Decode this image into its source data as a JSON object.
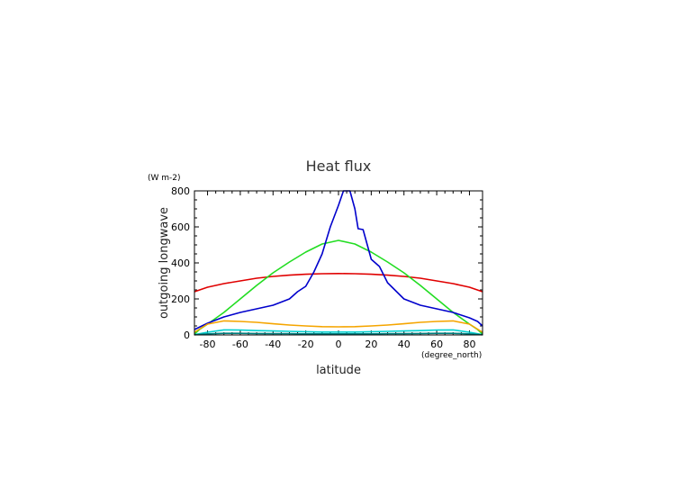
{
  "chart_data": {
    "type": "line",
    "title": "Heat flux",
    "xlabel": "latitude",
    "ylabel": "outgoing longwave",
    "x_units": "(degree_north)",
    "y_units": "(W m-2)",
    "xlim": [
      -88,
      88
    ],
    "ylim": [
      0,
      800
    ],
    "x_ticks": [
      -80,
      -60,
      -40,
      -20,
      0,
      20,
      40,
      60,
      80
    ],
    "y_ticks": [
      0,
      200,
      400,
      600,
      800
    ],
    "legend": "none",
    "series": [
      {
        "color": "#e00000",
        "points": [
          [
            -88,
            240
          ],
          [
            -80,
            265
          ],
          [
            -70,
            285
          ],
          [
            -60,
            300
          ],
          [
            -50,
            315
          ],
          [
            -40,
            325
          ],
          [
            -30,
            332
          ],
          [
            -20,
            337
          ],
          [
            -10,
            340
          ],
          [
            0,
            341
          ],
          [
            10,
            340
          ],
          [
            20,
            337
          ],
          [
            30,
            332
          ],
          [
            40,
            325
          ],
          [
            50,
            315
          ],
          [
            60,
            300
          ],
          [
            70,
            285
          ],
          [
            80,
            265
          ],
          [
            88,
            240
          ]
        ]
      },
      {
        "color": "#22dd22",
        "points": [
          [
            -88,
            5
          ],
          [
            -85,
            30
          ],
          [
            -80,
            60
          ],
          [
            -70,
            125
          ],
          [
            -60,
            200
          ],
          [
            -50,
            275
          ],
          [
            -40,
            345
          ],
          [
            -30,
            405
          ],
          [
            -20,
            460
          ],
          [
            -10,
            505
          ],
          [
            0,
            525
          ],
          [
            10,
            505
          ],
          [
            20,
            460
          ],
          [
            30,
            405
          ],
          [
            40,
            345
          ],
          [
            50,
            275
          ],
          [
            60,
            200
          ],
          [
            70,
            125
          ],
          [
            80,
            60
          ],
          [
            85,
            30
          ],
          [
            88,
            5
          ]
        ]
      },
      {
        "color": "#0000cc",
        "points": [
          [
            -88,
            30
          ],
          [
            -80,
            65
          ],
          [
            -70,
            100
          ],
          [
            -60,
            125
          ],
          [
            -50,
            145
          ],
          [
            -40,
            165
          ],
          [
            -30,
            200
          ],
          [
            -25,
            240
          ],
          [
            -20,
            270
          ],
          [
            -15,
            350
          ],
          [
            -10,
            450
          ],
          [
            -5,
            600
          ],
          [
            0,
            720
          ],
          [
            3,
            800
          ],
          [
            7,
            800
          ],
          [
            10,
            700
          ],
          [
            12,
            590
          ],
          [
            15,
            585
          ],
          [
            20,
            420
          ],
          [
            25,
            380
          ],
          [
            30,
            290
          ],
          [
            40,
            200
          ],
          [
            50,
            165
          ],
          [
            60,
            145
          ],
          [
            70,
            125
          ],
          [
            80,
            95
          ],
          [
            85,
            75
          ],
          [
            88,
            50
          ]
        ]
      },
      {
        "color": "#f5a500",
        "points": [
          [
            -88,
            15
          ],
          [
            -80,
            60
          ],
          [
            -70,
            78
          ],
          [
            -60,
            75
          ],
          [
            -50,
            70
          ],
          [
            -40,
            62
          ],
          [
            -30,
            55
          ],
          [
            -20,
            50
          ],
          [
            -10,
            46
          ],
          [
            0,
            45
          ],
          [
            10,
            46
          ],
          [
            20,
            50
          ],
          [
            30,
            55
          ],
          [
            40,
            62
          ],
          [
            50,
            70
          ],
          [
            60,
            75
          ],
          [
            70,
            78
          ],
          [
            80,
            60
          ],
          [
            88,
            15
          ]
        ]
      },
      {
        "color": "#00d0d0",
        "points": [
          [
            -88,
            2
          ],
          [
            -80,
            15
          ],
          [
            -70,
            28
          ],
          [
            -60,
            27
          ],
          [
            -50,
            24
          ],
          [
            -40,
            22
          ],
          [
            -30,
            20
          ],
          [
            -20,
            18
          ],
          [
            -10,
            16
          ],
          [
            0,
            16
          ],
          [
            10,
            16
          ],
          [
            20,
            18
          ],
          [
            30,
            20
          ],
          [
            40,
            22
          ],
          [
            50,
            24
          ],
          [
            60,
            27
          ],
          [
            70,
            28
          ],
          [
            80,
            15
          ],
          [
            88,
            2
          ]
        ]
      },
      {
        "color": "#008080",
        "points": [
          [
            -88,
            1
          ],
          [
            -80,
            6
          ],
          [
            -70,
            9
          ],
          [
            -60,
            9
          ],
          [
            -50,
            8
          ],
          [
            -40,
            7
          ],
          [
            -30,
            7
          ],
          [
            -20,
            6
          ],
          [
            -10,
            6
          ],
          [
            0,
            6
          ],
          [
            10,
            6
          ],
          [
            20,
            6
          ],
          [
            30,
            7
          ],
          [
            40,
            7
          ],
          [
            50,
            8
          ],
          [
            60,
            9
          ],
          [
            70,
            9
          ],
          [
            80,
            6
          ],
          [
            88,
            1
          ]
        ]
      }
    ]
  }
}
